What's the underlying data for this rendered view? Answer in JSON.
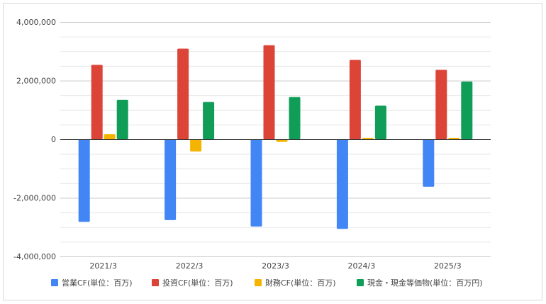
{
  "chart_data": {
    "type": "bar",
    "categories": [
      "2021/3",
      "2022/3",
      "2023/3",
      "2024/3",
      "2025/3"
    ],
    "series": [
      {
        "name": "営業CF(単位：百万)",
        "color": "#4285f4",
        "values": [
          -2820000,
          -2760000,
          -2980000,
          -3060000,
          -1620000
        ]
      },
      {
        "name": "投資CF(単位：百万)",
        "color": "#db4437",
        "values": [
          2540000,
          3090000,
          3210000,
          2710000,
          2370000
        ]
      },
      {
        "name": "財務CF(単位：百万)",
        "color": "#f4b400",
        "values": [
          170000,
          -420000,
          -90000,
          50000,
          50000
        ]
      },
      {
        "name": "現金・現金等価物(単位：百万円)",
        "color": "#0f9d58",
        "values": [
          1340000,
          1270000,
          1440000,
          1150000,
          1970000
        ]
      }
    ],
    "yticks": [
      "4,000,000",
      "2,000,000",
      "0",
      "-2,000,000",
      "-4,000,000"
    ],
    "ytick_values": [
      4000000,
      2000000,
      0,
      -2000000,
      -4000000
    ],
    "ylim": [
      -4000000,
      4000000
    ],
    "grid": true,
    "legend_position": "bottom",
    "title": "",
    "xlabel": "",
    "ylabel": ""
  }
}
